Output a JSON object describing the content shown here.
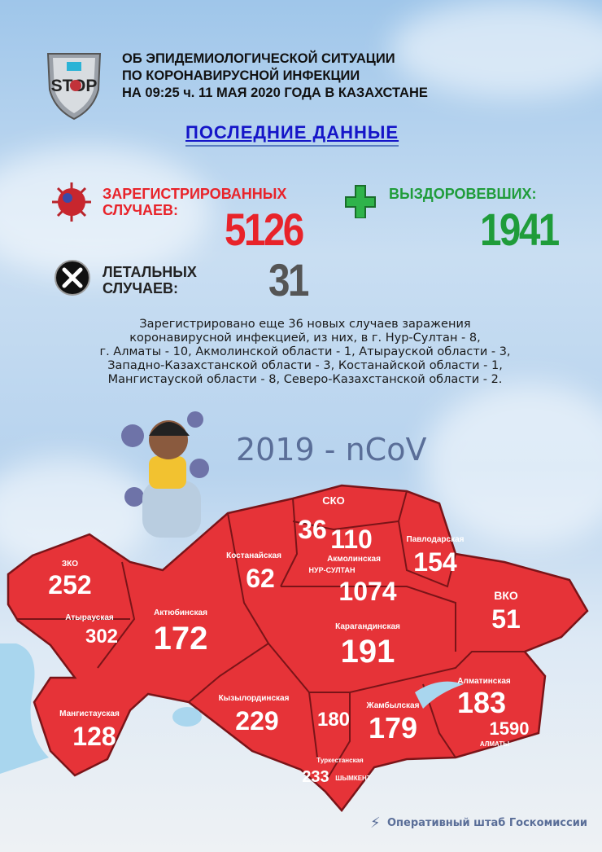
{
  "logo": {
    "text": "COVID-19 STOP"
  },
  "header": {
    "title_lines": [
      "ОБ ЭПИДЕМИОЛОГИЧЕСКОЙ СИТУАЦИИ",
      "ПО КОРОНАВИРУСНОЙ ИНФЕКЦИИ",
      "НА 09:25 ч. 11 МАЯ 2020 ГОДА В КАЗАХСТАНЕ"
    ],
    "subtitle": "ПОСЛЕДНИЕ ДАННЫЕ"
  },
  "stats": {
    "registered": {
      "label1": "ЗАРЕГИСТРИРОВАННЫХ",
      "label2": "СЛУЧАЕВ:",
      "value": "5126",
      "color": "#e8232a"
    },
    "recovered": {
      "label": "ВЫЗДОРОВЕВШИХ:",
      "value": "1941",
      "color": "#1f9c3a"
    },
    "deaths": {
      "label1": "ЛЕТАЛЬНЫХ",
      "label2": "СЛУЧАЕВ:",
      "value": "31",
      "color": "#555555"
    }
  },
  "summary": [
    "Зарегистрировано еще 36 новых случаев заражения",
    "коронавирусной инфекцией, из них, в г. Нур-Султан - 8,",
    "г. Алматы - 10, Акмолинской области - 1, Атырауской области - 3,",
    "Западно-Казахстанской области - 3, Костанайской области - 1,",
    "Мангистауской области - 8, Северо-Казахстанской области - 2."
  ],
  "ncov": "2019 - nCoV",
  "map": {
    "fill": "#e63338",
    "regions": [
      {
        "name": "ЗКО",
        "value": "252"
      },
      {
        "name": "Атырауская",
        "value": "302"
      },
      {
        "name": "Актюбинская",
        "value": "172"
      },
      {
        "name": "Костанайская",
        "value": "62"
      },
      {
        "name": "СКО",
        "value": "36"
      },
      {
        "name": "Акмолинская",
        "value": "110"
      },
      {
        "name": "НУР-СУЛТАН",
        "value": "1074"
      },
      {
        "name": "Павлодарская",
        "value": "154"
      },
      {
        "name": "ВКО",
        "value": "51"
      },
      {
        "name": "Карагандинская",
        "value": "191"
      },
      {
        "name": "Алматинская",
        "value": "183"
      },
      {
        "name": "АЛМАТЫ",
        "value": "1590"
      },
      {
        "name": "Жамбылская",
        "value": "179"
      },
      {
        "name": "",
        "value": "180"
      },
      {
        "name": "Кызылординская",
        "value": "229"
      },
      {
        "name": "Туркестанская",
        "value": "233"
      },
      {
        "name": "ШЫМКЕНТ",
        "value": ""
      },
      {
        "name": "Мангистауская",
        "value": "128"
      }
    ]
  },
  "footer": "Оперативный штаб Госкомиссии"
}
